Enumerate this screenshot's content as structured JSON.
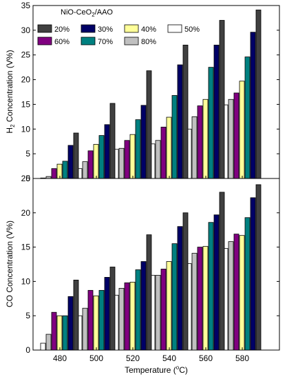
{
  "chart_data": [
    {
      "type": "bar",
      "ylabel_main": "H",
      "ylabel_sub": "2",
      "ylabel_rest": " Concentration (V%)",
      "xlabel": "",
      "categories": [
        "480",
        "500",
        "520",
        "540",
        "560",
        "580"
      ],
      "ylim": [
        0,
        35
      ],
      "yticks": [
        "0",
        "5",
        "10",
        "15",
        "20",
        "25",
        "30",
        "35"
      ],
      "series": [
        {
          "name": "50%",
          "values": [
            0.1,
            2.0,
            5.9,
            7.0,
            10.0,
            14.9
          ]
        },
        {
          "name": "80%",
          "values": [
            0.4,
            3.4,
            6.1,
            7.7,
            12.5,
            16.0
          ]
        },
        {
          "name": "60%",
          "values": [
            2.0,
            5.6,
            7.7,
            10.4,
            14.7,
            17.3
          ]
        },
        {
          "name": "40%",
          "values": [
            2.9,
            6.9,
            8.9,
            12.4,
            16.0,
            19.7
          ]
        },
        {
          "name": "70%",
          "values": [
            3.5,
            8.7,
            11.9,
            16.8,
            22.5,
            24.6
          ]
        },
        {
          "name": "30%",
          "values": [
            6.7,
            10.9,
            14.8,
            23.0,
            27.0,
            29.6
          ]
        },
        {
          "name": "20%",
          "values": [
            9.2,
            15.2,
            21.8,
            27.0,
            32.0,
            34.1
          ]
        }
      ],
      "legend_title_pre": "NiO-CeO",
      "legend_title_sub": "2",
      "legend_title_post": "/AAO",
      "legend_order": [
        "20%",
        "30%",
        "40%",
        "50%",
        "60%",
        "70%",
        "80%"
      ],
      "legend_placement": "top-left"
    },
    {
      "type": "bar",
      "ylabel": "CO Concentration (V%)",
      "xlabel_pre": "Temperature (",
      "xlabel_sup": "o",
      "xlabel_post": "C)",
      "categories": [
        "480",
        "500",
        "520",
        "540",
        "560",
        "580"
      ],
      "ylim": [
        0,
        25
      ],
      "yticks": [
        "0",
        "5",
        "10",
        "15",
        "20",
        "25"
      ],
      "series": [
        {
          "name": "50%",
          "values": [
            1.0,
            5.0,
            8.0,
            10.9,
            12.6,
            14.8
          ]
        },
        {
          "name": "80%",
          "values": [
            2.3,
            6.1,
            9.0,
            10.9,
            14.1,
            15.8
          ]
        },
        {
          "name": "60%",
          "values": [
            5.5,
            8.7,
            9.8,
            11.8,
            15.0,
            16.9
          ]
        },
        {
          "name": "40%",
          "values": [
            5.0,
            7.9,
            9.9,
            12.9,
            15.1,
            16.7
          ]
        },
        {
          "name": "70%",
          "values": [
            5.0,
            8.7,
            11.7,
            15.5,
            18.6,
            19.3
          ]
        },
        {
          "name": "30%",
          "values": [
            7.8,
            10.6,
            12.9,
            18.0,
            19.7,
            22.2
          ]
        },
        {
          "name": "20%",
          "values": [
            10.2,
            12.1,
            16.8,
            20.0,
            23.0,
            24.1
          ]
        }
      ]
    }
  ],
  "colors": {
    "20%": "#404040",
    "30%": "#000066",
    "40%": "#ffff99",
    "50%": "#ffffff",
    "60%": "#800080",
    "70%": "#008080",
    "80%": "#c0c0c0"
  }
}
